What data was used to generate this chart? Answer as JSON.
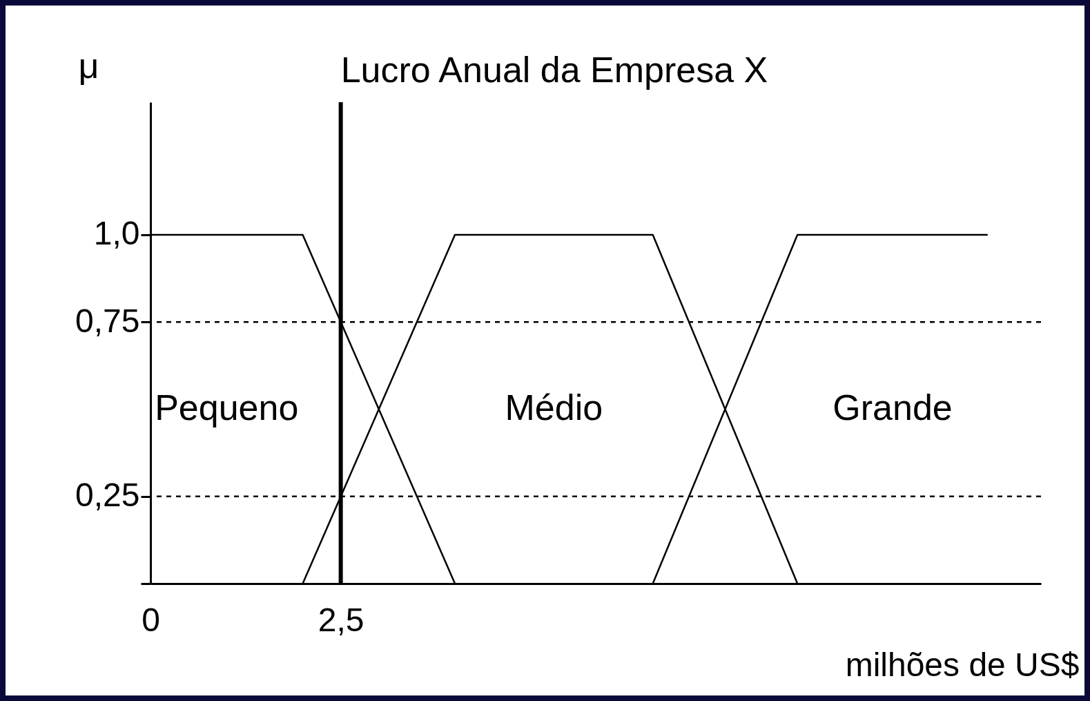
{
  "chart_data": {
    "type": "line",
    "title": "Lucro Anual da Empresa X",
    "xlabel": "milhões de US$",
    "ylabel": "μ",
    "series": [
      {
        "name": "Pequeno",
        "color": "#000000",
        "x": [
          0,
          2,
          4
        ],
        "values": [
          1,
          1,
          0
        ]
      },
      {
        "name": "Médio",
        "color": "#000000",
        "x": [
          2,
          4,
          6.6,
          8.5
        ],
        "values": [
          0,
          1,
          1,
          0
        ]
      },
      {
        "name": "Grande",
        "color": "#000000",
        "x": [
          6.6,
          8.5,
          11
        ],
        "values": [
          0,
          1,
          1
        ]
      }
    ],
    "xlim": [
      0,
      11.7
    ],
    "xticks": [
      0,
      {
        "value": 2.5,
        "label": "2,5"
      }
    ],
    "ylim": [
      0,
      1.38
    ],
    "yticks": [
      {
        "value": 0,
        "label": null
      },
      {
        "value": 0.25,
        "label": "0,25"
      },
      {
        "value": 0.75,
        "label": "0,75"
      },
      {
        "value": 1,
        "label": "1,0"
      }
    ],
    "ref_lines": [
      {
        "axis": "y",
        "value": 0.25,
        "color": "#000000",
        "line_style": "dashed"
      },
      {
        "axis": "y",
        "value": 0.75,
        "color": "#000000",
        "line_style": "dashed"
      },
      {
        "axis": "x",
        "value": 2.5,
        "color": "#000000",
        "line_style": "solid"
      }
    ],
    "grid": false,
    "legend": false,
    "marker": "none",
    "line_style": "solid"
  }
}
